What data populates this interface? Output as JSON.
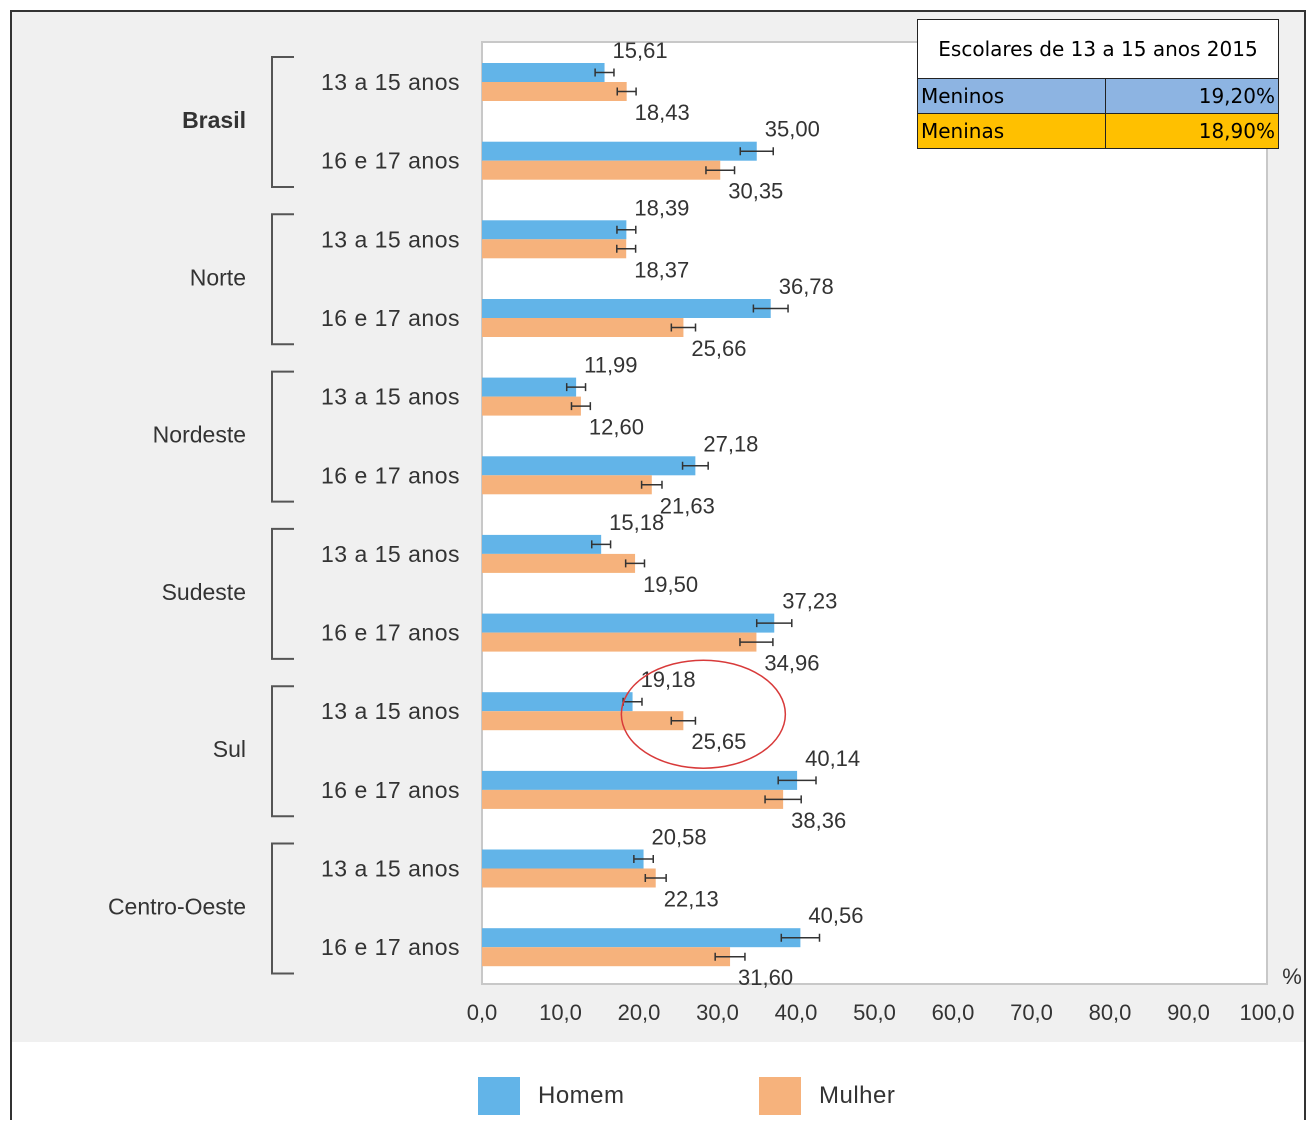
{
  "chart_data": {
    "type": "bar",
    "orientation": "horizontal",
    "groups": [
      {
        "region": "Brasil",
        "bold": true,
        "rows": [
          {
            "age": "13 a 15 anos",
            "homem": 15.61,
            "homem_label": "15,61",
            "mulher": 18.43,
            "mulher_label": "18,43"
          },
          {
            "age": "16 e 17 anos",
            "homem": 35.0,
            "homem_label": "35,00",
            "mulher": 30.35,
            "mulher_label": "30,35"
          }
        ]
      },
      {
        "region": "Norte",
        "bold": false,
        "rows": [
          {
            "age": "13 a 15 anos",
            "homem": 18.39,
            "homem_label": "18,39",
            "mulher": 18.37,
            "mulher_label": "18,37"
          },
          {
            "age": "16 e 17 anos",
            "homem": 36.78,
            "homem_label": "36,78",
            "mulher": 25.66,
            "mulher_label": "25,66"
          }
        ]
      },
      {
        "region": "Nordeste",
        "bold": false,
        "rows": [
          {
            "age": "13 a 15 anos",
            "homem": 11.99,
            "homem_label": "11,99",
            "mulher": 12.6,
            "mulher_label": "12,60"
          },
          {
            "age": "16 e 17 anos",
            "homem": 27.18,
            "homem_label": "27,18",
            "mulher": 21.63,
            "mulher_label": "21,63"
          }
        ]
      },
      {
        "region": "Sudeste",
        "bold": false,
        "rows": [
          {
            "age": "13 a 15 anos",
            "homem": 15.18,
            "homem_label": "15,18",
            "mulher": 19.5,
            "mulher_label": "19,50"
          },
          {
            "age": "16 e 17 anos",
            "homem": 37.23,
            "homem_label": "37,23",
            "mulher": 34.96,
            "mulher_label": "34,96"
          }
        ]
      },
      {
        "region": "Sul",
        "bold": false,
        "rows": [
          {
            "age": "13 a 15 anos",
            "homem": 19.18,
            "homem_label": "19,18",
            "mulher": 25.65,
            "mulher_label": "25,65",
            "highlight": true
          },
          {
            "age": "16 e 17 anos",
            "homem": 40.14,
            "homem_label": "40,14",
            "mulher": 38.36,
            "mulher_label": "38,36"
          }
        ]
      },
      {
        "region": "Centro-Oeste",
        "bold": false,
        "rows": [
          {
            "age": "13 a 15 anos",
            "homem": 20.58,
            "homem_label": "20,58",
            "mulher": 22.13,
            "mulher_label": "22,13"
          },
          {
            "age": "16 e 17 anos",
            "homem": 40.56,
            "homem_label": "40,56",
            "mulher": 31.6,
            "mulher_label": "31,60"
          }
        ]
      }
    ],
    "x_ticks": [
      "0,0",
      "10,0",
      "20,0",
      "30,0",
      "40,0",
      "50,0",
      "60,0",
      "70,0",
      "80,0",
      "90,0",
      "100,0"
    ],
    "xlim": [
      0,
      100
    ],
    "unit_label": "%",
    "grid": false,
    "series": [
      {
        "name": "Homem",
        "color": "#62b4e8"
      },
      {
        "name": "Mulher",
        "color": "#f6b27c"
      }
    ],
    "annotation_color": "#d83a3a"
  },
  "legend": {
    "homem": "Homem",
    "mulher": "Mulher"
  },
  "info_table": {
    "title": "Escolares de 13 a 15 anos 2015",
    "rows": [
      {
        "label": "Meninos",
        "value": "19,20%"
      },
      {
        "label": "Meninas",
        "value": "18,90%"
      }
    ]
  }
}
